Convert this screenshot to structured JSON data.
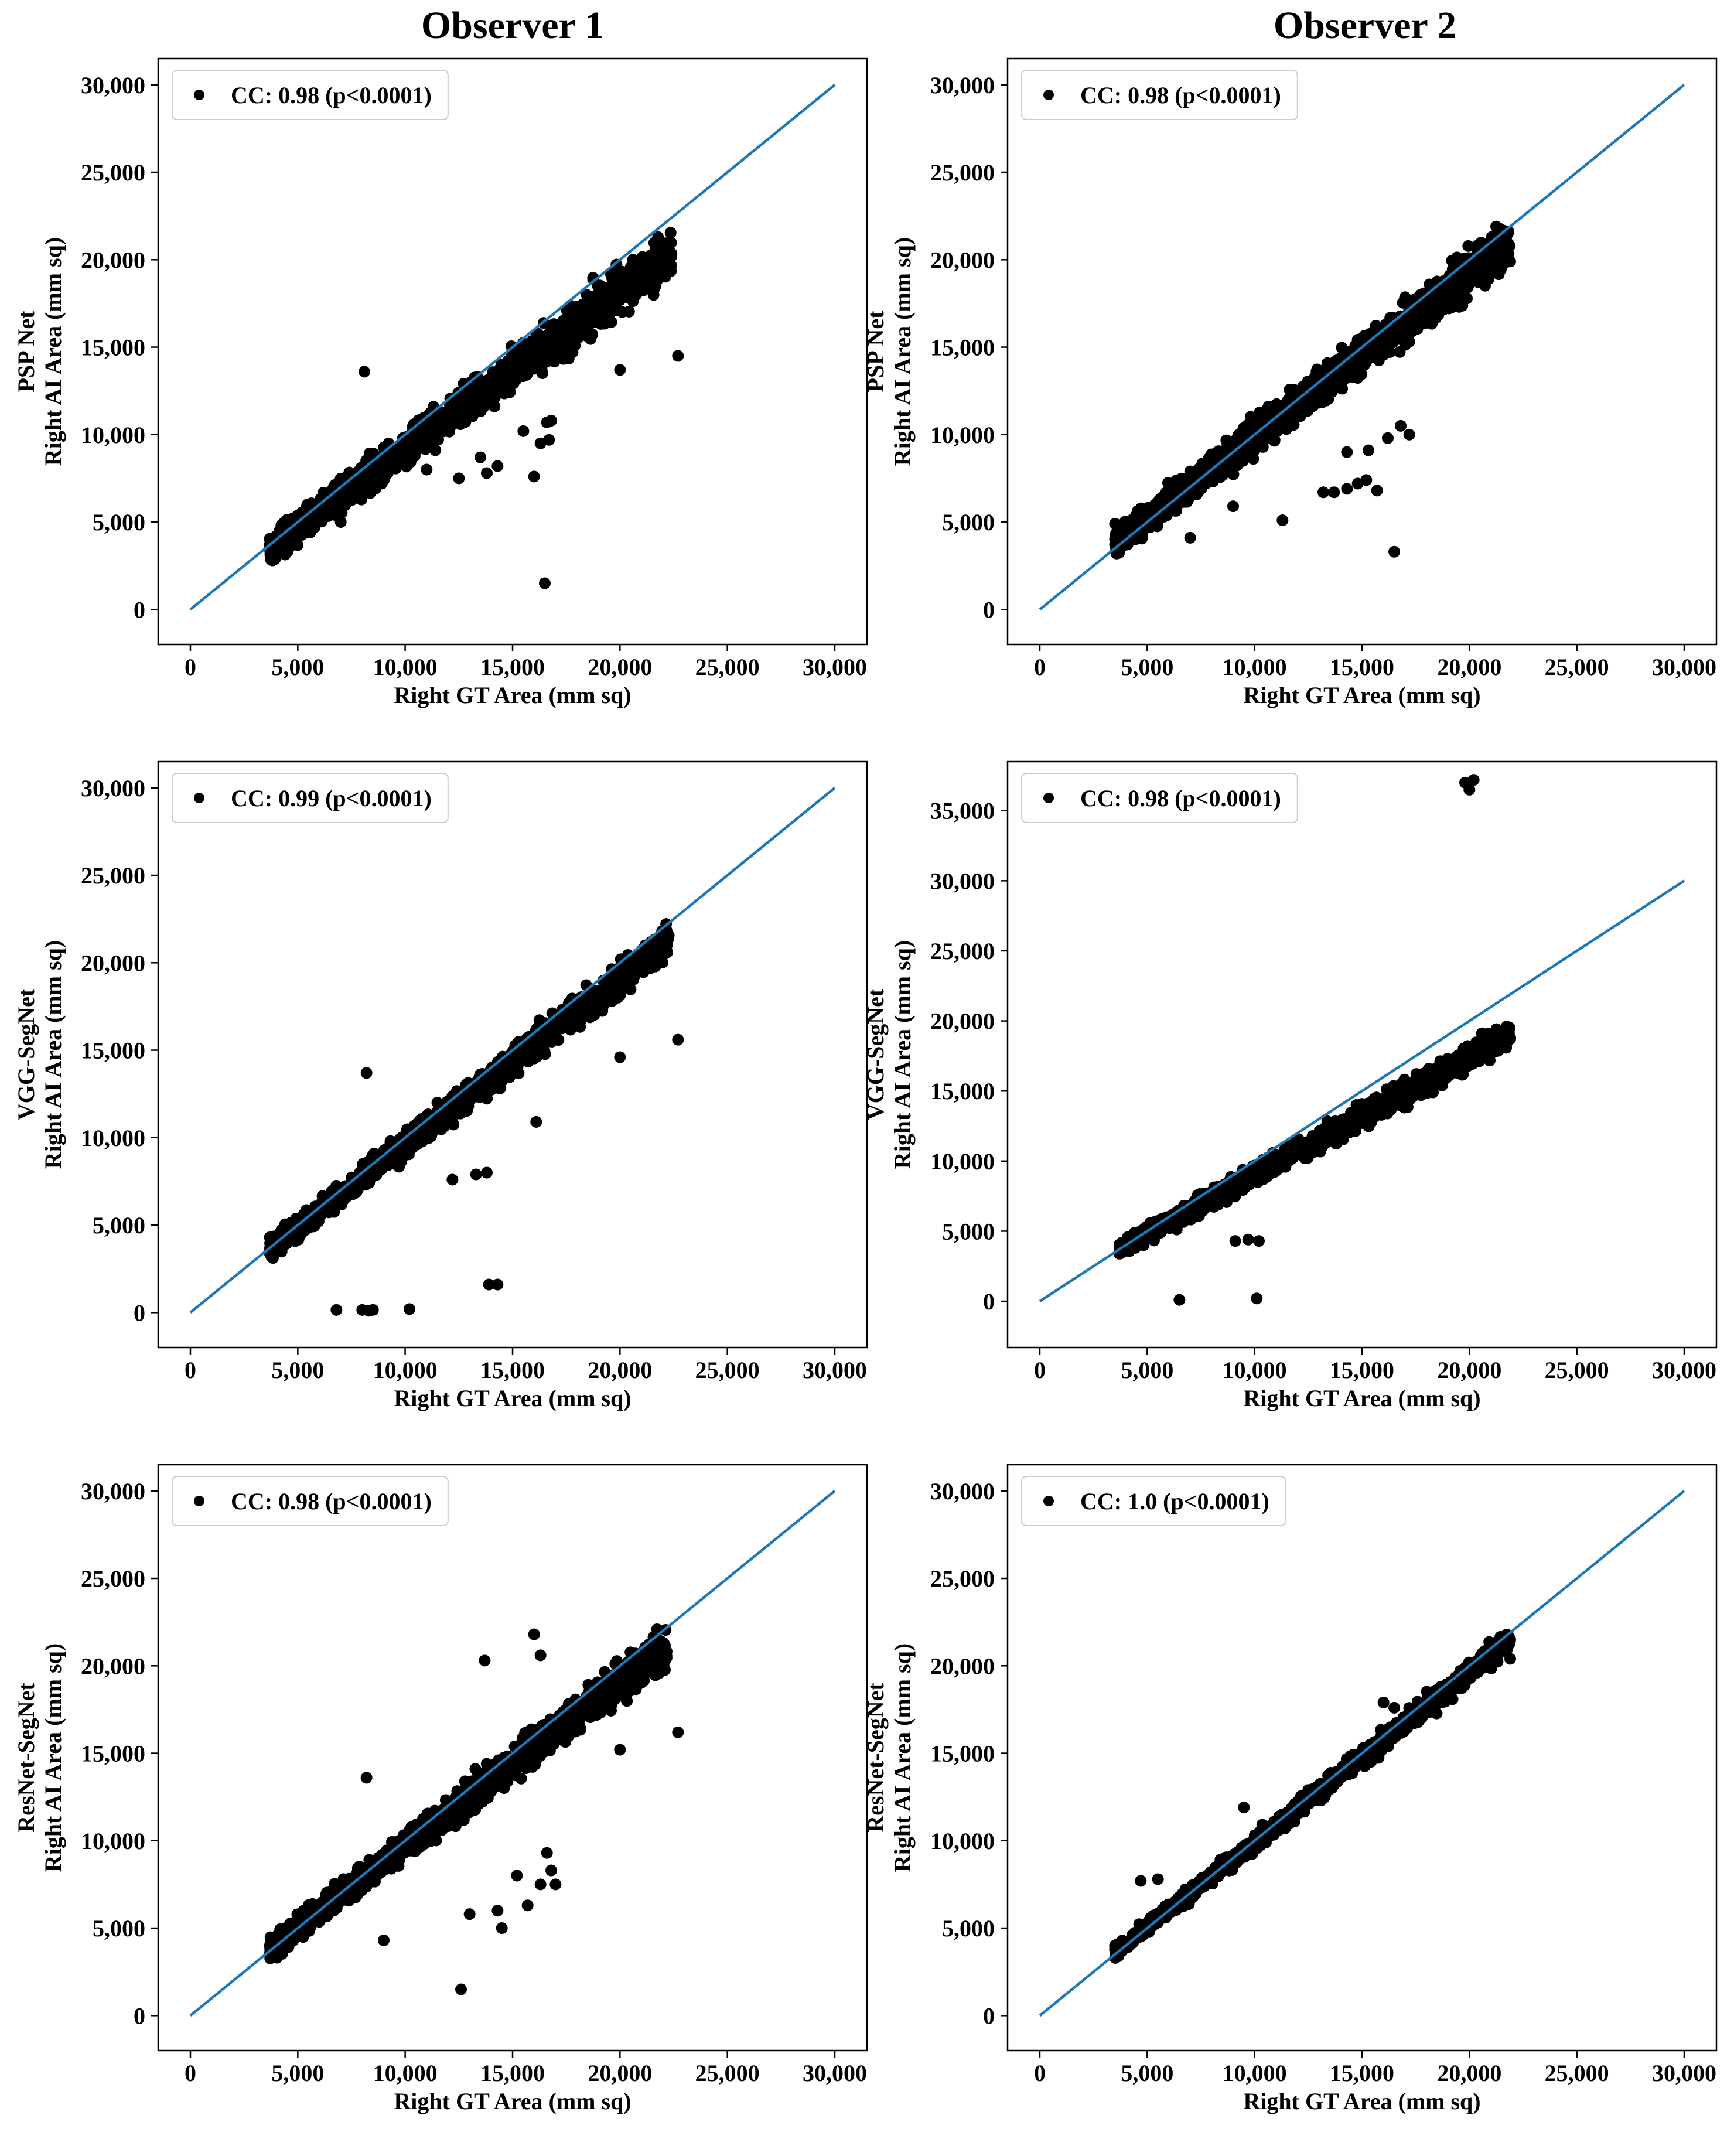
{
  "column_titles": [
    "Observer 1",
    "Observer 2"
  ],
  "chart_data": [
    {
      "type": "scatter",
      "title": "Observer 1",
      "row": 0,
      "col": 0,
      "model": "PSP Net",
      "ylabel": "Right AI Area (mm sq)",
      "xlabel": "Right GT Area (mm sq)",
      "xlim": [
        -1500,
        31500
      ],
      "ylim": [
        -2000,
        31500
      ],
      "xticks": [
        0,
        5000,
        10000,
        15000,
        20000,
        25000,
        30000
      ],
      "xtick_labels": [
        "0",
        "5,000",
        "10,000",
        "15,000",
        "20,000",
        "25,000",
        "30,000"
      ],
      "yticks": [
        0,
        5000,
        10000,
        15000,
        20000,
        25000,
        30000
      ],
      "ytick_labels": [
        "0",
        "5,000",
        "10,000",
        "15,000",
        "20,000",
        "25,000",
        "30,000"
      ],
      "legend": "CC: 0.98 (p<0.0001)",
      "identity_line": [
        [
          0,
          0
        ],
        [
          30000,
          30000
        ]
      ],
      "cloud": {
        "x_range": [
          3700,
          22400
        ],
        "slope": 0.9,
        "intercept": 200,
        "spread": 1000,
        "n": 1400
      },
      "points": [
        [
          3700,
          4050
        ],
        [
          4000,
          4200
        ],
        [
          4500,
          4100
        ],
        [
          5000,
          4400
        ],
        [
          7000,
          5000
        ],
        [
          8100,
          13600
        ],
        [
          11000,
          8000
        ],
        [
          12500,
          7500
        ],
        [
          13500,
          8700
        ],
        [
          13800,
          7800
        ],
        [
          14300,
          8200
        ],
        [
          15500,
          10200
        ],
        [
          16000,
          7600
        ],
        [
          16300,
          9500
        ],
        [
          16600,
          10700
        ],
        [
          16800,
          10800
        ],
        [
          16700,
          9700
        ],
        [
          16500,
          1500
        ],
        [
          20000,
          13700
        ],
        [
          22700,
          14500
        ],
        [
          21000,
          19800
        ],
        [
          21700,
          20300
        ],
        [
          22100,
          19800
        ]
      ]
    },
    {
      "type": "scatter",
      "title": "Observer 2",
      "row": 0,
      "col": 1,
      "model": "PSP Net",
      "ylabel": "Right AI Area (mm sq)",
      "xlabel": "Right GT Area (mm sq)",
      "xlim": [
        -1500,
        31500
      ],
      "ylim": [
        -2000,
        31500
      ],
      "xticks": [
        0,
        5000,
        10000,
        15000,
        20000,
        25000,
        30000
      ],
      "xtick_labels": [
        "0",
        "5,000",
        "10,000",
        "15,000",
        "20,000",
        "25,000",
        "30,000"
      ],
      "yticks": [
        0,
        5000,
        10000,
        15000,
        20000,
        25000,
        30000
      ],
      "ytick_labels": [
        "0",
        "5,000",
        "10,000",
        "15,000",
        "20,000",
        "25,000",
        "30,000"
      ],
      "legend": "CC: 0.98 (p<0.0001)",
      "identity_line": [
        [
          0,
          0
        ],
        [
          30000,
          30000
        ]
      ],
      "cloud": {
        "x_range": [
          3500,
          21900
        ],
        "slope": 0.93,
        "intercept": 600,
        "spread": 900,
        "n": 1600
      },
      "points": [
        [
          3500,
          4900
        ],
        [
          3800,
          4100
        ],
        [
          7000,
          4100
        ],
        [
          9000,
          5900
        ],
        [
          11300,
          5100
        ],
        [
          13200,
          6700
        ],
        [
          13700,
          6700
        ],
        [
          14300,
          6900
        ],
        [
          14800,
          7200
        ],
        [
          15200,
          7400
        ],
        [
          15700,
          6800
        ],
        [
          14300,
          9000
        ],
        [
          15300,
          9100
        ],
        [
          16200,
          9800
        ],
        [
          16800,
          10500
        ],
        [
          17200,
          10000
        ],
        [
          16500,
          3300
        ],
        [
          21500,
          20500
        ],
        [
          21900,
          19900
        ]
      ]
    },
    {
      "type": "scatter",
      "title": "Observer 1",
      "row": 1,
      "col": 0,
      "model": "VGG-SegNet",
      "ylabel": "Right AI Area (mm sq)",
      "xlabel": "Right GT Area (mm sq)",
      "xlim": [
        -1500,
        31500
      ],
      "ylim": [
        -2000,
        31500
      ],
      "xticks": [
        0,
        5000,
        10000,
        15000,
        20000,
        25000,
        30000
      ],
      "xtick_labels": [
        "0",
        "5,000",
        "10,000",
        "15,000",
        "20,000",
        "25,000",
        "30,000"
      ],
      "yticks": [
        0,
        5000,
        10000,
        15000,
        20000,
        25000,
        30000
      ],
      "ytick_labels": [
        "0",
        "5,000",
        "10,000",
        "15,000",
        "20,000",
        "25,000",
        "30,000"
      ],
      "legend": "CC: 0.99 (p<0.0001)",
      "identity_line": [
        [
          0,
          0
        ],
        [
          30000,
          30000
        ]
      ],
      "cloud": {
        "x_range": [
          3700,
          22300
        ],
        "slope": 0.95,
        "intercept": 100,
        "spread": 700,
        "n": 1300
      },
      "points": [
        [
          3700,
          4300
        ],
        [
          4500,
          4200
        ],
        [
          6800,
          150
        ],
        [
          8000,
          150
        ],
        [
          8300,
          100
        ],
        [
          8500,
          150
        ],
        [
          10200,
          200
        ],
        [
          13900,
          1600
        ],
        [
          14300,
          1600
        ],
        [
          8200,
          13700
        ],
        [
          12200,
          7600
        ],
        [
          13300,
          7900
        ],
        [
          13800,
          8000
        ],
        [
          16100,
          10900
        ],
        [
          20000,
          14600
        ],
        [
          22700,
          15600
        ],
        [
          21800,
          21100
        ],
        [
          22200,
          20600
        ]
      ]
    },
    {
      "type": "scatter",
      "title": "Observer 2",
      "row": 1,
      "col": 1,
      "model": "VGG-SegNet",
      "ylabel": "Right AI Area (mm sq)",
      "xlabel": "Right GT Area (mm sq)",
      "xlim": [
        -1500,
        31500
      ],
      "ylim": [
        -3300,
        38500
      ],
      "xticks": [
        0,
        5000,
        10000,
        15000,
        20000,
        25000,
        30000
      ],
      "xtick_labels": [
        "0",
        "5,000",
        "10,000",
        "15,000",
        "20,000",
        "25,000",
        "30,000"
      ],
      "yticks": [
        0,
        5000,
        10000,
        15000,
        20000,
        25000,
        30000,
        35000
      ],
      "ytick_labels": [
        "0",
        "5,000",
        "10,000",
        "15,000",
        "20,000",
        "25,000",
        "30,000",
        "35,000"
      ],
      "legend": "CC: 0.98 (p<0.0001)",
      "identity_line": [
        [
          0,
          0
        ],
        [
          30000,
          30000
        ]
      ],
      "cloud": {
        "x_range": [
          3700,
          21900
        ],
        "slope": 0.84,
        "intercept": 600,
        "spread": 650,
        "n": 1500
      },
      "points": [
        [
          3700,
          3400
        ],
        [
          6500,
          100
        ],
        [
          10100,
          200
        ],
        [
          9100,
          4300
        ],
        [
          9700,
          4400
        ],
        [
          10200,
          4300
        ],
        [
          19800,
          37000
        ],
        [
          20000,
          36500
        ],
        [
          20200,
          37200
        ],
        [
          21900,
          18800
        ]
      ]
    },
    {
      "type": "scatter",
      "title": "Observer 1",
      "row": 2,
      "col": 0,
      "model": "ResNet-SegNet",
      "ylabel": "Right AI Area (mm sq)",
      "xlabel": "Right GT Area (mm sq)",
      "xlim": [
        -1500,
        31500
      ],
      "ylim": [
        -2000,
        31500
      ],
      "xticks": [
        0,
        5000,
        10000,
        15000,
        20000,
        25000,
        30000
      ],
      "xtick_labels": [
        "0",
        "5,000",
        "10,000",
        "15,000",
        "20,000",
        "25,000",
        "30,000"
      ],
      "yticks": [
        0,
        5000,
        10000,
        15000,
        20000,
        25000,
        30000
      ],
      "ytick_labels": [
        "0",
        "5,000",
        "10,000",
        "15,000",
        "20,000",
        "25,000",
        "30,000"
      ],
      "legend": "CC: 0.98 (p<0.0001)",
      "identity_line": [
        [
          0,
          0
        ],
        [
          30000,
          30000
        ]
      ],
      "cloud": {
        "x_range": [
          3700,
          22200
        ],
        "slope": 0.94,
        "intercept": 300,
        "spread": 800,
        "n": 1400
      },
      "points": [
        [
          3700,
          4000
        ],
        [
          4500,
          4100
        ],
        [
          8200,
          13600
        ],
        [
          9000,
          4300
        ],
        [
          12600,
          1500
        ],
        [
          13000,
          5800
        ],
        [
          13700,
          20300
        ],
        [
          14300,
          6000
        ],
        [
          14500,
          5000
        ],
        [
          15200,
          8000
        ],
        [
          15700,
          6300
        ],
        [
          16000,
          21800
        ],
        [
          16300,
          20600
        ],
        [
          16300,
          7500
        ],
        [
          16800,
          8300
        ],
        [
          17000,
          7500
        ],
        [
          16600,
          9300
        ],
        [
          20000,
          15200
        ],
        [
          22700,
          16200
        ],
        [
          21700,
          21600
        ],
        [
          22100,
          20300
        ]
      ]
    },
    {
      "type": "scatter",
      "title": "Observer 2",
      "row": 2,
      "col": 1,
      "model": "ResNet-SegNet",
      "ylabel": "Right AI Area (mm sq)",
      "xlabel": "Right GT Area (mm sq)",
      "xlim": [
        -1500,
        31500
      ],
      "ylim": [
        -2000,
        31500
      ],
      "xticks": [
        0,
        5000,
        10000,
        15000,
        20000,
        25000,
        30000
      ],
      "xtick_labels": [
        "0",
        "5,000",
        "10,000",
        "15,000",
        "20,000",
        "25,000",
        "30,000"
      ],
      "yticks": [
        0,
        5000,
        10000,
        15000,
        20000,
        25000,
        30000
      ],
      "ytick_labels": [
        "0",
        "5,000",
        "10,000",
        "15,000",
        "20,000",
        "25,000",
        "30,000"
      ],
      "legend": "CC: 1.0 (p<0.0001)",
      "identity_line": [
        [
          0,
          0
        ],
        [
          30000,
          30000
        ]
      ],
      "cloud": {
        "x_range": [
          3500,
          21900
        ],
        "slope": 0.97,
        "intercept": 200,
        "spread": 450,
        "n": 1200
      },
      "points": [
        [
          3500,
          4000
        ],
        [
          4000,
          4100
        ],
        [
          4700,
          7700
        ],
        [
          5500,
          7800
        ],
        [
          9500,
          11900
        ],
        [
          12500,
          12900
        ],
        [
          16000,
          17900
        ],
        [
          16500,
          17600
        ],
        [
          21300,
          21300
        ],
        [
          21900,
          20400
        ]
      ]
    }
  ]
}
